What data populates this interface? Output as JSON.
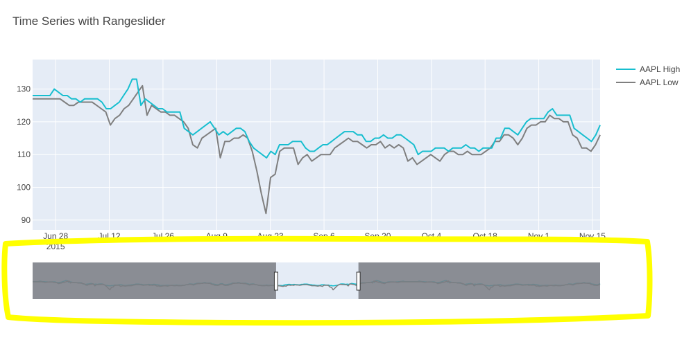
{
  "chart_data": {
    "type": "line",
    "title": "Time Series with Rangeslider",
    "xlabel": "",
    "ylabel": "",
    "ylim": [
      87,
      139
    ],
    "x_range_visible": [
      "2015-06-22",
      "2015-11-17"
    ],
    "x_tick_labels": [
      "Jun 28",
      "Jul 12",
      "Jul 26",
      "Aug 9",
      "Aug 23",
      "Sep 6",
      "Sep 20",
      "Oct 4",
      "Oct 18",
      "Nov 1",
      "Nov 15"
    ],
    "x_tick_dates": [
      "2015-06-28",
      "2015-07-12",
      "2015-07-26",
      "2015-08-09",
      "2015-08-23",
      "2015-09-06",
      "2015-09-20",
      "2015-10-04",
      "2015-10-18",
      "2015-11-01",
      "2015-11-15"
    ],
    "x_year_label": "2015",
    "y_ticks": [
      90,
      100,
      110,
      120,
      130
    ],
    "grid": true,
    "legend_position": "right",
    "rangeslider": true,
    "series": [
      {
        "name": "AAPL High",
        "color": "#17BECF",
        "x": [
          "2015-06-22",
          "2015-06-23",
          "2015-06-24",
          "2015-06-25",
          "2015-06-26",
          "2015-06-29",
          "2015-06-30",
          "2015-07-01",
          "2015-07-02",
          "2015-07-06",
          "2015-07-07",
          "2015-07-08",
          "2015-07-09",
          "2015-07-10",
          "2015-07-13",
          "2015-07-14",
          "2015-07-15",
          "2015-07-16",
          "2015-07-17",
          "2015-07-20",
          "2015-07-21",
          "2015-07-22",
          "2015-07-23",
          "2015-07-24",
          "2015-07-27",
          "2015-07-28",
          "2015-07-29",
          "2015-07-30",
          "2015-07-31",
          "2015-08-03",
          "2015-08-04",
          "2015-08-05",
          "2015-08-06",
          "2015-08-07",
          "2015-08-10",
          "2015-08-11",
          "2015-08-12",
          "2015-08-13",
          "2015-08-14",
          "2015-08-17",
          "2015-08-18",
          "2015-08-19",
          "2015-08-20",
          "2015-08-21",
          "2015-08-24",
          "2015-08-25",
          "2015-08-26",
          "2015-08-27",
          "2015-08-28",
          "2015-08-31",
          "2015-09-01",
          "2015-09-02",
          "2015-09-03",
          "2015-09-04",
          "2015-09-08",
          "2015-09-09",
          "2015-09-10",
          "2015-09-11",
          "2015-09-14",
          "2015-09-15",
          "2015-09-16",
          "2015-09-17",
          "2015-09-18",
          "2015-09-21",
          "2015-09-22",
          "2015-09-23",
          "2015-09-24",
          "2015-09-25",
          "2015-09-28",
          "2015-09-29",
          "2015-09-30",
          "2015-10-01",
          "2015-10-02",
          "2015-10-05",
          "2015-10-06",
          "2015-10-07",
          "2015-10-08",
          "2015-10-09",
          "2015-10-12",
          "2015-10-13",
          "2015-10-14",
          "2015-10-15",
          "2015-10-16",
          "2015-10-19",
          "2015-10-20",
          "2015-10-21",
          "2015-10-22",
          "2015-10-23",
          "2015-10-26",
          "2015-10-27",
          "2015-10-28",
          "2015-10-29",
          "2015-10-30",
          "2015-11-02",
          "2015-11-03",
          "2015-11-04",
          "2015-11-05",
          "2015-11-06",
          "2015-11-09",
          "2015-11-10",
          "2015-11-11",
          "2015-11-12",
          "2015-11-13",
          "2015-11-16",
          "2015-11-17"
        ],
        "values": [
          128.1,
          128.1,
          128.2,
          127.6,
          127.0,
          130.0,
          129.4,
          128.2,
          127.6,
          126.7,
          125.4,
          126.8,
          126.6,
          126.5,
          125.7,
          126.4,
          124.6,
          126.0,
          127.6,
          128.5,
          129.1,
          131.1,
          130.4,
          128.6,
          125.6,
          127.3,
          126.3,
          125.4,
          125.4,
          124.3,
          123.8,
          124.0,
          123.5,
          122.6,
          122.6,
          122.2,
          119.4,
          117.5,
          116.5,
          117.2,
          117.0,
          116.8,
          116.5,
          115.7,
          114.9,
          114.4,
          111.7,
          109.5,
          110.5,
          113.3,
          114.6,
          114.2,
          113.7,
          113.5,
          111.3,
          112.5,
          113.2,
          113.4,
          114.7,
          116.3,
          116.4,
          115.0,
          114.8,
          114.9,
          114.5,
          115.1,
          114.3,
          114.7,
          115.4,
          114.0,
          113.9,
          111.8,
          110.3,
          111.2,
          111.4,
          111.3,
          111.5,
          112.0,
          111.3,
          111.2,
          112.5,
          112.6,
          112.7,
          112.8,
          112.5,
          111.7,
          112.2,
          119.2,
          118.6,
          118.0,
          116.5,
          119.2,
          121.2,
          121.4,
          121.5,
          121.8,
          123.7,
          121.9,
          121.7,
          121.3,
          119.6,
          116.9,
          116.1,
          114.9,
          119.0
        ],
        "display_values": [
          128,
          128,
          128,
          128,
          128,
          130,
          129,
          128,
          128,
          127,
          127,
          126,
          127,
          127,
          127,
          127,
          126,
          124,
          124,
          125,
          126,
          128,
          130,
          133,
          133,
          125,
          127,
          126,
          125,
          124,
          124,
          123,
          123,
          123,
          123,
          118,
          117,
          116,
          117,
          118,
          119,
          120,
          118,
          116,
          117,
          116,
          117,
          118,
          118,
          117,
          114,
          112,
          111,
          110,
          109,
          111,
          110,
          113,
          113,
          113,
          114,
          114,
          114,
          112,
          111,
          111,
          112,
          113,
          113,
          114,
          115,
          116,
          117,
          117,
          117,
          116,
          116,
          114,
          114,
          115,
          115,
          116,
          115,
          115,
          116,
          116,
          115,
          114,
          113,
          110,
          111,
          111,
          111,
          112,
          112,
          112,
          111,
          112,
          112,
          112,
          113,
          112,
          112,
          111,
          112,
          112,
          112,
          115,
          115,
          118,
          118,
          117,
          116,
          118,
          120,
          121,
          121,
          121,
          121,
          123,
          124,
          122,
          122,
          122,
          122,
          118,
          117,
          116,
          115,
          114,
          116,
          119
        ]
      },
      {
        "name": "AAPL Low",
        "color": "#7F7F7F",
        "display_values": [
          127,
          127,
          127,
          127,
          127,
          127,
          127,
          126,
          125,
          125,
          126,
          126,
          126,
          126,
          125,
          124,
          123,
          119,
          121,
          122,
          124,
          125,
          127,
          129,
          131,
          122,
          125,
          124,
          123,
          123,
          122,
          122,
          121,
          120,
          118,
          113,
          112,
          115,
          116,
          117,
          118,
          109,
          114,
          114,
          115,
          115,
          116,
          115,
          111,
          105,
          98,
          92,
          103,
          104,
          111,
          112,
          112,
          112,
          107,
          109,
          110,
          108,
          109,
          110,
          110,
          110,
          112,
          113,
          114,
          115,
          114,
          114,
          113,
          112,
          113,
          113,
          114,
          112,
          113,
          112,
          113,
          112,
          108,
          109,
          107,
          108,
          109,
          110,
          109,
          108,
          110,
          111,
          111,
          110,
          110,
          111,
          110,
          110,
          110,
          111,
          112,
          114,
          114,
          116,
          116,
          115,
          113,
          115,
          118,
          119,
          119,
          120,
          120,
          122,
          121,
          121,
          120,
          120,
          116,
          115,
          112,
          112,
          111,
          113,
          116
        ]
      }
    ],
    "rangeslider_selection": [
      "2015-07-03",
      "2015-08-18"
    ],
    "rangeslider_x_range": [
      "2015-02-17",
      "2015-12-31"
    ]
  }
}
